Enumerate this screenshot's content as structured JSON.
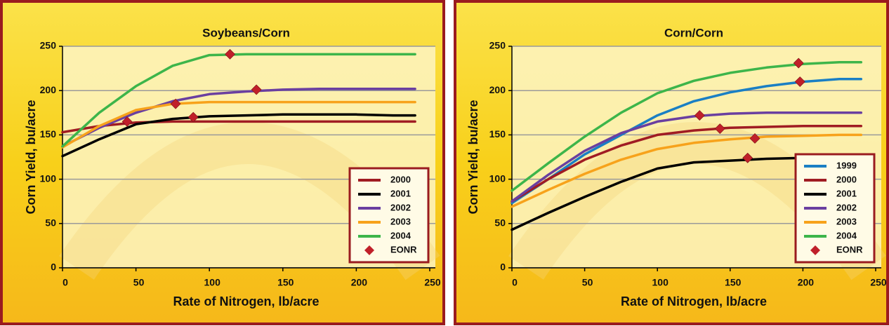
{
  "chart_data": [
    {
      "type": "line",
      "title": "Soybeans/Corn",
      "x_label": "Rate of Nitrogen, lb/acre",
      "y_label": "Corn Yield, bu/acre",
      "x": [
        0,
        25,
        50,
        75,
        100,
        125,
        150,
        175,
        200,
        225,
        240
      ],
      "series": [
        {
          "name": "2000",
          "color": "#a01c23",
          "values": [
            153,
            160,
            164,
            165,
            165,
            165,
            165,
            165,
            165,
            165,
            165
          ]
        },
        {
          "name": "2001",
          "color": "#000000",
          "values": [
            126,
            145,
            162,
            168,
            171,
            172,
            173,
            173,
            173,
            172,
            172
          ]
        },
        {
          "name": "2002",
          "color": "#6a3fa0",
          "values": [
            137,
            158,
            175,
            188,
            196,
            199,
            201,
            202,
            202,
            202,
            202
          ]
        },
        {
          "name": "2003",
          "color": "#f7a21b",
          "values": [
            136,
            160,
            178,
            185,
            187,
            187,
            187,
            187,
            187,
            187,
            187
          ]
        },
        {
          "name": "2004",
          "color": "#3db54a",
          "values": [
            137,
            175,
            205,
            228,
            240,
            241,
            241,
            241,
            241,
            241,
            241
          ]
        }
      ],
      "points": {
        "name": "EONR",
        "color": "#c0202a",
        "x": [
          44,
          77,
          89,
          114,
          132
        ],
        "values": [
          165,
          185,
          170,
          241,
          201
        ]
      },
      "xlim": [
        0,
        250
      ],
      "xticks": [
        0,
        50,
        100,
        150,
        200,
        250
      ],
      "ylim": [
        0,
        250
      ],
      "yticks": [
        0,
        50,
        100,
        150,
        200,
        250
      ],
      "grid": true,
      "legend": "lower right"
    },
    {
      "type": "line",
      "title": "Corn/Corn",
      "x_label": "Rate of Nitrogen, lb/acre",
      "y_label": "Corn Yield, bu/acre",
      "x": [
        0,
        25,
        50,
        75,
        100,
        125,
        150,
        175,
        200,
        225,
        240
      ],
      "series": [
        {
          "name": "1999",
          "color": "#1a7fc4",
          "values": [
            73,
            100,
            128,
            150,
            172,
            188,
            198,
            205,
            210,
            213,
            213
          ]
        },
        {
          "name": "2000",
          "color": "#a01c23",
          "values": [
            75,
            100,
            122,
            138,
            150,
            155,
            158,
            159,
            160,
            160,
            160
          ]
        },
        {
          "name": "2001",
          "color": "#000000",
          "values": [
            43,
            62,
            80,
            97,
            112,
            119,
            121,
            123,
            124,
            124,
            124
          ]
        },
        {
          "name": "2002",
          "color": "#6a3fa0",
          "values": [
            75,
            105,
            132,
            152,
            165,
            171,
            174,
            175,
            175,
            175,
            175
          ]
        },
        {
          "name": "2003",
          "color": "#f7a21b",
          "values": [
            69,
            88,
            106,
            122,
            134,
            141,
            145,
            148,
            149,
            150,
            150
          ]
        },
        {
          "name": "2004",
          "color": "#3db54a",
          "values": [
            87,
            118,
            148,
            175,
            197,
            211,
            220,
            226,
            230,
            232,
            232
          ]
        }
      ],
      "points": {
        "name": "EONR",
        "color": "#c0202a",
        "x": [
          129,
          143,
          162,
          167,
          197,
          198
        ],
        "values": [
          172,
          157,
          124,
          146,
          231,
          210
        ]
      },
      "xlim": [
        0,
        250
      ],
      "xticks": [
        0,
        50,
        100,
        150,
        200,
        250
      ],
      "ylim": [
        0,
        250
      ],
      "yticks": [
        0,
        50,
        100,
        150,
        200,
        250
      ],
      "grid": true,
      "legend": "lower right"
    }
  ]
}
